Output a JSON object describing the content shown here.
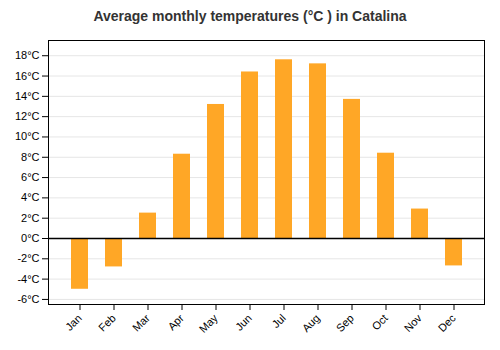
{
  "chart_data": {
    "type": "bar",
    "title": "Average monthly temperatures (°C ) in Catalina",
    "categories": [
      "Jan",
      "Feb",
      "Mar",
      "Apr",
      "May",
      "Jun",
      "Jul",
      "Aug",
      "Sep",
      "Oct",
      "Nov",
      "Dec"
    ],
    "values": [
      -5.0,
      -2.8,
      2.5,
      8.3,
      13.2,
      16.4,
      17.6,
      17.2,
      13.7,
      8.4,
      2.9,
      -2.7
    ],
    "color": "#FFA726",
    "ylim": [
      -6.5,
      19.5
    ],
    "yticks": [
      {
        "value": -6,
        "label": "-6°C"
      },
      {
        "value": -4,
        "label": "-4°C"
      },
      {
        "value": -2,
        "label": "-2°C"
      },
      {
        "value": 0,
        "label": "0°C"
      },
      {
        "value": 2,
        "label": "2°C"
      },
      {
        "value": 4,
        "label": "4°C"
      },
      {
        "value": 6,
        "label": "6°C"
      },
      {
        "value": 8,
        "label": "8°C"
      },
      {
        "value": 10,
        "label": "10°C"
      },
      {
        "value": 12,
        "label": "12°C"
      },
      {
        "value": 14,
        "label": "14°C"
      },
      {
        "value": 16,
        "label": "16°C"
      },
      {
        "value": 18,
        "label": "18°C"
      }
    ],
    "grid": true
  }
}
